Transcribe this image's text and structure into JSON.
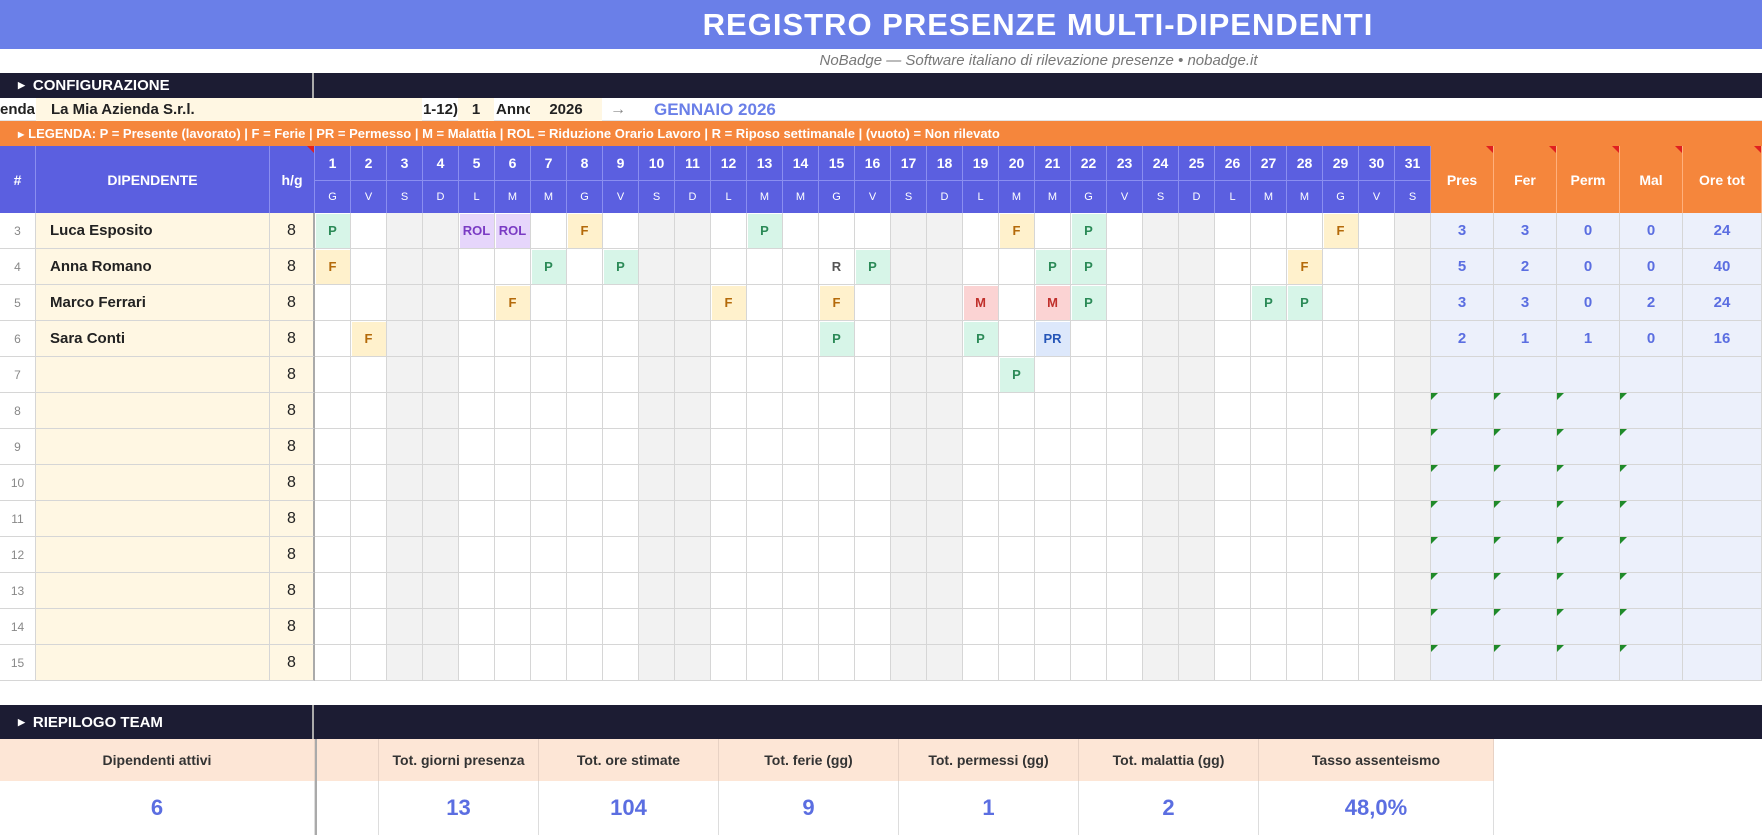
{
  "title": "REGISTRO PRESENZE MULTI-DIPENDENTI",
  "subtitle": "NoBadge — Software italiano di rilevazione presenze • nobadge.it",
  "config": {
    "section_label": "CONFIGURAZIONE",
    "azienda_label_partial": "enda",
    "azienda_value": "La Mia Azienda S.r.l.",
    "mese_label_partial": "1-12)",
    "mese_value": "1",
    "anno_label": "Anno",
    "anno_value": "2026",
    "arrow": "→",
    "period_title": "GENNAIO 2026"
  },
  "legend": "LEGENDA:  P = Presente (lavorato)   |   F = Ferie   |   PR = Permesso   |   M = Malattia   |   ROL = Riduzione Orario Lavoro   |   R = Riposo settimanale   |   (vuoto) = Non rilevato",
  "table": {
    "col_num": "#",
    "col_name": "DIPENDENTE",
    "col_hg": "h/g",
    "days": [
      "1",
      "2",
      "3",
      "4",
      "5",
      "6",
      "7",
      "8",
      "9",
      "10",
      "11",
      "12",
      "13",
      "14",
      "15",
      "16",
      "17",
      "18",
      "19",
      "20",
      "21",
      "22",
      "23",
      "24",
      "25",
      "26",
      "27",
      "28",
      "29",
      "30",
      "31"
    ],
    "weekdays": [
      "G",
      "V",
      "S",
      "D",
      "L",
      "M",
      "M",
      "G",
      "V",
      "S",
      "D",
      "L",
      "M",
      "M",
      "G",
      "V",
      "S",
      "D",
      "L",
      "M",
      "M",
      "G",
      "V",
      "S",
      "D",
      "L",
      "M",
      "M",
      "G",
      "V",
      "S"
    ],
    "summary_headers": [
      "Pres",
      "Fer",
      "Perm",
      "Mal",
      "Ore tot"
    ],
    "rows": [
      {
        "num": "3",
        "name": "Luca Esposito",
        "hg": "8",
        "marks": {
          "1": "P",
          "5": "ROL",
          "6": "ROL",
          "8": "F",
          "13": "P",
          "20": "F",
          "22": "P",
          "29": "F"
        },
        "summary": [
          "3",
          "3",
          "0",
          "0",
          "24"
        ]
      },
      {
        "num": "4",
        "name": "Anna Romano",
        "hg": "8",
        "marks": {
          "1": "F",
          "7": "P",
          "9": "P",
          "15": "R",
          "16": "P",
          "21": "P",
          "22": "P",
          "28": "F"
        },
        "summary": [
          "5",
          "2",
          "0",
          "0",
          "40"
        ]
      },
      {
        "num": "5",
        "name": "Marco Ferrari",
        "hg": "8",
        "marks": {
          "6": "F",
          "12": "F",
          "15": "F",
          "19": "M",
          "21": "M",
          "22": "P",
          "27": "P",
          "28": "P"
        },
        "summary": [
          "3",
          "3",
          "0",
          "2",
          "24"
        ]
      },
      {
        "num": "6",
        "name": "Sara Conti",
        "hg": "8",
        "marks": {
          "2": "F",
          "15": "P",
          "19": "P",
          "21": "PR"
        },
        "summary": [
          "2",
          "1",
          "1",
          "0",
          "16"
        ]
      },
      {
        "num": "7",
        "name": "",
        "hg": "8",
        "marks": {
          "20": "P"
        },
        "summary": [
          "",
          "",
          "",
          "",
          ""
        ]
      },
      {
        "num": "8",
        "name": "",
        "hg": "8",
        "marks": {},
        "summary": [
          "",
          "",
          "",
          "",
          ""
        ]
      },
      {
        "num": "9",
        "name": "",
        "hg": "8",
        "marks": {},
        "summary": [
          "",
          "",
          "",
          "",
          ""
        ]
      },
      {
        "num": "10",
        "name": "",
        "hg": "8",
        "marks": {},
        "summary": [
          "",
          "",
          "",
          "",
          ""
        ]
      },
      {
        "num": "11",
        "name": "",
        "hg": "8",
        "marks": {},
        "summary": [
          "",
          "",
          "",
          "",
          ""
        ]
      },
      {
        "num": "12",
        "name": "",
        "hg": "8",
        "marks": {},
        "summary": [
          "",
          "",
          "",
          "",
          ""
        ]
      },
      {
        "num": "13",
        "name": "",
        "hg": "8",
        "marks": {},
        "summary": [
          "",
          "",
          "",
          "",
          ""
        ]
      },
      {
        "num": "14",
        "name": "",
        "hg": "8",
        "marks": {},
        "summary": [
          "",
          "",
          "",
          "",
          ""
        ]
      },
      {
        "num": "15",
        "name": "",
        "hg": "8",
        "marks": {},
        "summary": [
          "",
          "",
          "",
          "",
          ""
        ]
      }
    ]
  },
  "team": {
    "section_label": "RIEPILOGO TEAM",
    "kpis": [
      {
        "label": "Dipendenti attivi",
        "value": "6"
      },
      {
        "label": "Tot. giorni presenza",
        "value": "13"
      },
      {
        "label": "Tot. ore stimate",
        "value": "104"
      },
      {
        "label": "Tot. ferie (gg)",
        "value": "9"
      },
      {
        "label": "Tot. permessi (gg)",
        "value": "1"
      },
      {
        "label": "Tot. malattia (gg)",
        "value": "2"
      },
      {
        "label": "Tasso assenteismo",
        "value": "48,0%"
      }
    ]
  },
  "colors": {
    "accent": "#5b5fe0",
    "orange": "#f5863c",
    "dark_bar": "#1c1c33",
    "title_bg": "#6a7fe8"
  }
}
